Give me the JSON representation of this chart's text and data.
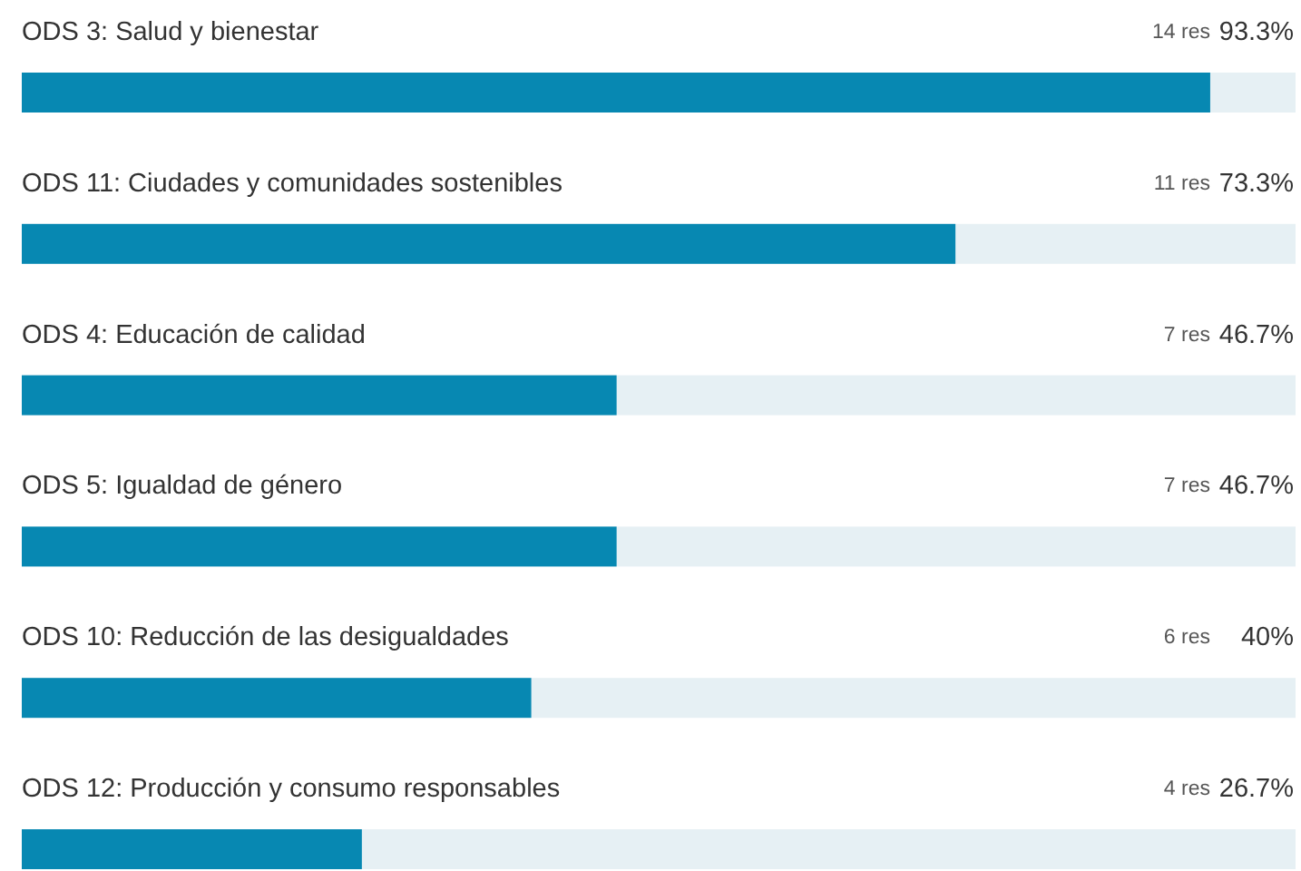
{
  "chart_data": {
    "type": "bar",
    "orientation": "horizontal",
    "categories": [
      "ODS 3: Salud y bienestar",
      "ODS 11: Ciudades y comunidades sostenibles",
      "ODS 4: Educación de calidad",
      "ODS 5: Igualdad de género",
      "ODS 10: Reducción de las desigualdades",
      "ODS 12: Producción y consumo responsables"
    ],
    "values": [
      93.3,
      73.3,
      46.7,
      46.7,
      40,
      26.7
    ],
    "value_labels": [
      "93.3%",
      "73.3%",
      "46.7%",
      "46.7%",
      "40%",
      "26.7%"
    ],
    "annotations": [
      "14 res",
      "11 res",
      "7 res",
      "7 res",
      "6 res",
      "4 res"
    ],
    "color": "#0788b2",
    "xlim": [
      0,
      100
    ]
  }
}
